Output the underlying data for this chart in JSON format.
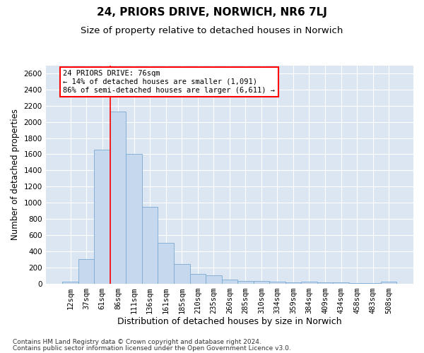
{
  "title": "24, PRIORS DRIVE, NORWICH, NR6 7LJ",
  "subtitle": "Size of property relative to detached houses in Norwich",
  "xlabel": "Distribution of detached houses by size in Norwich",
  "ylabel": "Number of detached properties",
  "footer_line1": "Contains HM Land Registry data © Crown copyright and database right 2024.",
  "footer_line2": "Contains public sector information licensed under the Open Government Licence v3.0.",
  "annotation_line1": "24 PRIORS DRIVE: 76sqm",
  "annotation_line2": "← 14% of detached houses are smaller (1,091)",
  "annotation_line3": "86% of semi-detached houses are larger (6,611) →",
  "bar_categories": [
    "12sqm",
    "37sqm",
    "61sqm",
    "86sqm",
    "111sqm",
    "136sqm",
    "161sqm",
    "185sqm",
    "210sqm",
    "235sqm",
    "260sqm",
    "285sqm",
    "310sqm",
    "334sqm",
    "359sqm",
    "384sqm",
    "409sqm",
    "434sqm",
    "458sqm",
    "483sqm",
    "508sqm"
  ],
  "bar_values": [
    25,
    300,
    1660,
    2130,
    1600,
    950,
    505,
    240,
    120,
    100,
    50,
    35,
    30,
    20,
    15,
    20,
    10,
    10,
    8,
    5,
    20
  ],
  "bar_color": "#c5d8ed",
  "bar_edge_color": "#7aaad0",
  "red_line_index": 2.5,
  "ylim_max": 2700,
  "ytick_step": 200,
  "bg_color": "#dce6f2",
  "grid_color": "#ffffff",
  "title_fontsize": 11,
  "subtitle_fontsize": 9.5,
  "ylabel_fontsize": 8.5,
  "xlabel_fontsize": 9,
  "tick_fontsize": 7.5,
  "ann_fontsize": 7.5,
  "footer_fontsize": 6.5
}
